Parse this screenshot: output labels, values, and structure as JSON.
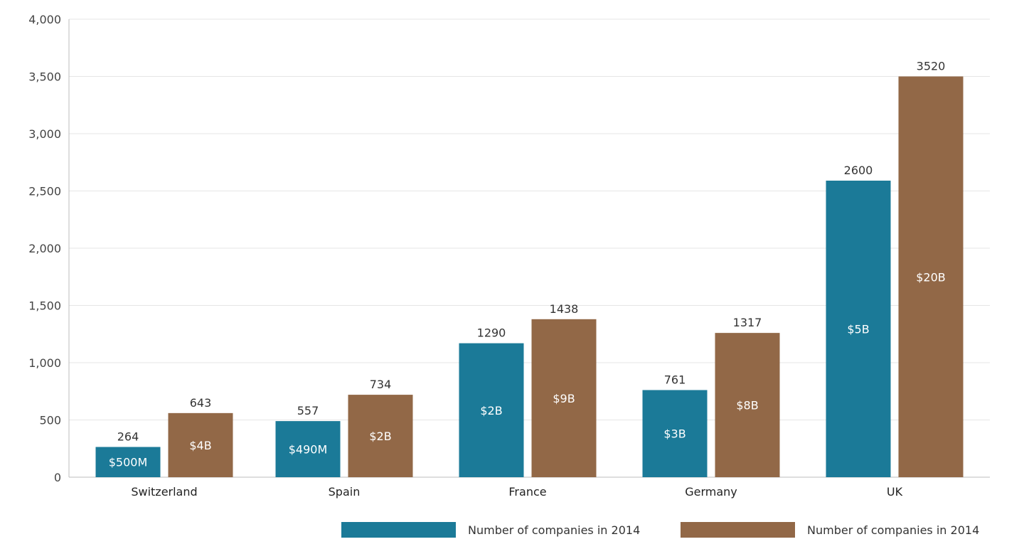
{
  "colors": {
    "series_teal": "#1b7a98",
    "series_brown": "#926847"
  },
  "chart_data": {
    "type": "bar",
    "categories": [
      "Switzerland",
      "Spain",
      "France",
      "Germany",
      "UK"
    ],
    "series": [
      {
        "name": "Number of companies in 2014",
        "color": "#1b7a98",
        "values": [
          264,
          557,
          1290,
          761,
          2600
        ],
        "heights": [
          264,
          490,
          1170,
          761,
          2590
        ],
        "inner_labels": [
          "$500M",
          "$490M",
          "$2B",
          "$3B",
          "$5B"
        ]
      },
      {
        "name": "Number of companies in 2014",
        "color": "#926847",
        "values": [
          643,
          734,
          1438,
          1317,
          3520
        ],
        "heights": [
          560,
          720,
          1380,
          1260,
          3500
        ],
        "inner_labels": [
          "$4B",
          "$2B",
          "$9B",
          "$8B",
          "$20B"
        ]
      }
    ],
    "ylim": [
      0,
      4000
    ],
    "yticks": [
      0,
      500,
      1000,
      1500,
      2000,
      2500,
      3000,
      3500,
      4000
    ],
    "ytick_labels": [
      "0",
      "500",
      "1,000",
      "1,500",
      "2,000",
      "2,500",
      "3,000",
      "3,500",
      "4,000"
    ],
    "xlabel": "",
    "ylabel": "",
    "grid": true,
    "legend_position": "bottom-right"
  }
}
